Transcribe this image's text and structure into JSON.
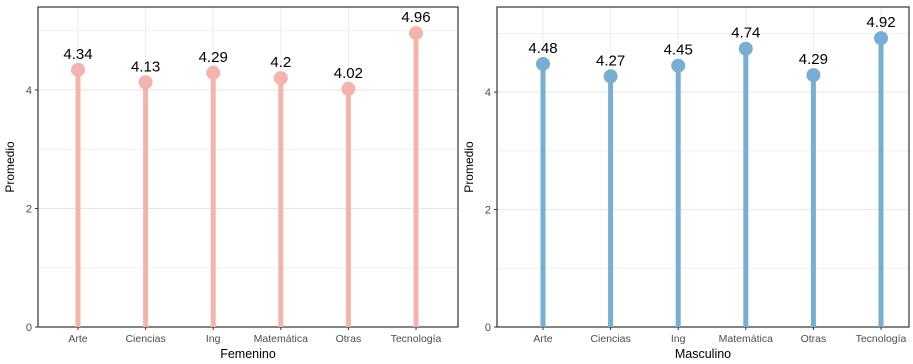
{
  "chart_data": [
    {
      "type": "lollipop",
      "categories": [
        "Arte",
        "Ciencias",
        "Ing",
        "Matemática",
        "Otras",
        "Tecnología"
      ],
      "values": [
        4.34,
        4.13,
        4.29,
        4.2,
        4.02,
        4.96
      ],
      "value_labels": [
        "4.34",
        "4.13",
        "4.29",
        "4.2",
        "4.02",
        "4.96"
      ],
      "xlabel": "Femenino",
      "ylabel": "Promedio",
      "ylim": [
        0,
        5.4
      ],
      "yticks": [
        "0",
        "2",
        "4"
      ],
      "grid": true,
      "color": "#f4b4ae"
    },
    {
      "type": "lollipop",
      "categories": [
        "Arte",
        "Ciencias",
        "Ing",
        "Matemática",
        "Otras",
        "Tecnología"
      ],
      "values": [
        4.48,
        4.27,
        4.45,
        4.74,
        4.29,
        4.92
      ],
      "value_labels": [
        "4.48",
        "4.27",
        "4.45",
        "4.74",
        "4.29",
        "4.92"
      ],
      "xlabel": "Masculino",
      "ylabel": "Promedio",
      "ylim": [
        0,
        5.45
      ],
      "yticks": [
        "0",
        "2",
        "4"
      ],
      "grid": true,
      "color": "#78aed3"
    }
  ]
}
